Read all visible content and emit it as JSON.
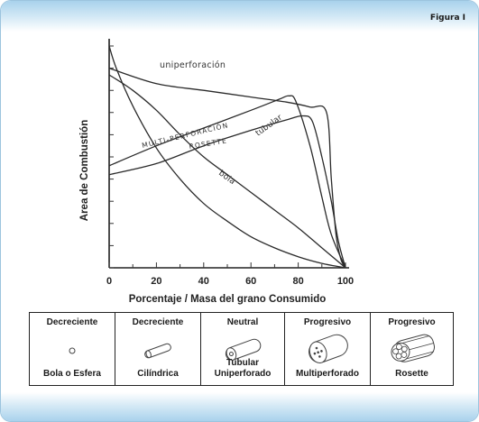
{
  "figure_label": "Figura I",
  "chart_data": {
    "type": "line",
    "title": "",
    "xlabel": "Porcentaje / Masa del grano Consumido",
    "ylabel": "Area de Combustión",
    "xlim": [
      0,
      100
    ],
    "x_ticks": [
      0,
      20,
      40,
      60,
      80,
      100
    ],
    "grid": false,
    "series": [
      {
        "name": "uniperforación",
        "points": [
          [
            0,
            90
          ],
          [
            20,
            83
          ],
          [
            40,
            80
          ],
          [
            60,
            77
          ],
          [
            75,
            74.7
          ],
          [
            85,
            72.5
          ],
          [
            92,
            70
          ],
          [
            94,
            40
          ],
          [
            96,
            15
          ],
          [
            98,
            4
          ],
          [
            100,
            0
          ]
        ]
      },
      {
        "name": "MULTI-PERFORACIÓN",
        "points": [
          [
            0,
            46
          ],
          [
            20,
            55
          ],
          [
            40,
            63
          ],
          [
            60,
            71
          ],
          [
            72,
            76
          ],
          [
            76,
            77.5
          ],
          [
            79,
            75
          ],
          [
            85,
            55
          ],
          [
            90,
            32
          ],
          [
            94,
            15
          ],
          [
            100,
            0
          ]
        ]
      },
      {
        "name": "ROSETTE",
        "points": [
          [
            0,
            42
          ],
          [
            20,
            47
          ],
          [
            40,
            55
          ],
          [
            60,
            62
          ],
          [
            76,
            67
          ],
          [
            82,
            68.5
          ],
          [
            86,
            66
          ],
          [
            90,
            50
          ],
          [
            94,
            30
          ],
          [
            97,
            12
          ],
          [
            100,
            0
          ]
        ]
      },
      {
        "name": "tubular",
        "points": [
          [
            0,
            87
          ],
          [
            10,
            80
          ],
          [
            20,
            71
          ],
          [
            30,
            60
          ],
          [
            40,
            50
          ],
          [
            50,
            42
          ],
          [
            60,
            34
          ],
          [
            70,
            26
          ],
          [
            80,
            18
          ],
          [
            90,
            9
          ],
          [
            100,
            0
          ]
        ]
      },
      {
        "name": "bola",
        "points": [
          [
            0,
            100
          ],
          [
            3,
            90
          ],
          [
            10,
            73
          ],
          [
            20,
            54
          ],
          [
            30,
            40
          ],
          [
            40,
            29
          ],
          [
            50,
            21
          ],
          [
            60,
            14
          ],
          [
            70,
            9
          ],
          [
            80,
            5
          ],
          [
            90,
            2
          ],
          [
            100,
            0
          ]
        ]
      }
    ]
  },
  "table": {
    "columns": [
      {
        "kind": "Decreciente",
        "name": "Bola o Esfera",
        "shape": "sphere"
      },
      {
        "kind": "Decreciente",
        "name": "Cilíndrica",
        "shape": "cylinder"
      },
      {
        "kind": "Neutral",
        "name": "Tubular\nUniperforado",
        "shape": "tube"
      },
      {
        "kind": "Progresivo",
        "name": "Multiperforado",
        "shape": "multiperf"
      },
      {
        "kind": "Progresivo",
        "name": "Rosette",
        "shape": "rosette"
      }
    ]
  }
}
